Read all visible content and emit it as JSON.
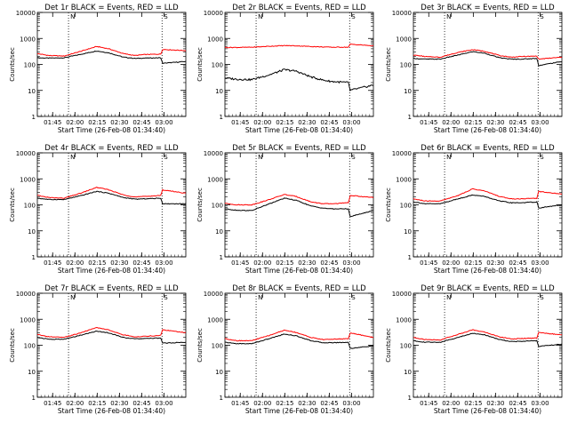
{
  "chart_data": {
    "type": "line",
    "y_scale": "log",
    "ylim": [
      1,
      10000
    ],
    "y_ticks": [
      "1",
      "10",
      "100",
      "1000",
      "10000"
    ],
    "ylabel": "Counts/sec",
    "x_ticks": [
      "01:45",
      "02:00",
      "02:15",
      "02:30",
      "02:45",
      "03:00"
    ],
    "xlabel": "Start Time (26-Feb-08 01:34:40)",
    "colors": {
      "events": "#000000",
      "lld": "#ff0000"
    },
    "marker_labels": [
      "N",
      "S",
      "N",
      "S",
      "N",
      "S",
      "N",
      "S",
      "N",
      "S",
      "N",
      "S",
      "N",
      "S",
      "N",
      "S",
      "N",
      "S"
    ],
    "panels": [
      {
        "title": "Det 1r BLACK = Events, RED = LLD",
        "series": [
          {
            "key": "events",
            "values": [
              180,
              175,
              180,
              250,
              330,
              280,
              190,
              170,
              175,
              180,
              110,
              130
            ]
          },
          {
            "key": "lld",
            "values": [
              260,
              220,
              210,
              330,
              490,
              400,
              260,
              220,
              240,
              250,
              380,
              340
            ]
          }
        ]
      },
      {
        "title": "Det 2r BLACK = Events, RED = LLD",
        "series": [
          {
            "key": "events",
            "values": [
              30,
              27,
              26,
              40,
              63,
              55,
              33,
              25,
              22,
              20,
              10,
              16
            ]
          },
          {
            "key": "lld",
            "values": [
              450,
              450,
              460,
              500,
              530,
              520,
              490,
              470,
              460,
              460,
              600,
              520
            ]
          }
        ]
      },
      {
        "title": "Det 3r BLACK = Events, RED = LLD",
        "series": [
          {
            "key": "events",
            "values": [
              170,
              160,
              160,
              230,
              310,
              270,
              180,
              160,
              160,
              170,
              90,
              130
            ]
          },
          {
            "key": "lld",
            "values": [
              230,
              200,
              190,
              290,
              370,
              320,
              220,
              190,
              200,
              210,
              160,
              190
            ]
          }
        ]
      },
      {
        "title": "Det 4r BLACK = Events, RED = LLD",
        "series": [
          {
            "key": "events",
            "values": [
              180,
              160,
              160,
              230,
              330,
              280,
              190,
              165,
              170,
              180,
              110,
              110
            ]
          },
          {
            "key": "lld",
            "values": [
              230,
              190,
              180,
              290,
              470,
              380,
              240,
              200,
              210,
              230,
              380,
              280
            ]
          }
        ]
      },
      {
        "title": "Det 5r BLACK = Events, RED = LLD",
        "series": [
          {
            "key": "events",
            "values": [
              70,
              62,
              60,
              110,
              180,
              150,
              90,
              75,
              70,
              70,
              35,
              60
            ]
          },
          {
            "key": "lld",
            "values": [
              115,
              100,
              100,
              160,
              250,
              210,
              130,
              110,
              110,
              120,
              230,
              190
            ]
          }
        ]
      },
      {
        "title": "Det 6r BLACK = Events, RED = LLD",
        "series": [
          {
            "key": "events",
            "values": [
              130,
              110,
              110,
              170,
              240,
              210,
              140,
              120,
              120,
              130,
              75,
              100
            ]
          },
          {
            "key": "lld",
            "values": [
              170,
              140,
              140,
              230,
              410,
              340,
              210,
              170,
              170,
              180,
              330,
              260
            ]
          }
        ]
      },
      {
        "title": "Det 7r BLACK = Events, RED = LLD",
        "series": [
          {
            "key": "events",
            "values": [
              200,
              170,
              170,
              250,
              350,
              300,
              200,
              175,
              180,
              190,
              120,
              130
            ]
          },
          {
            "key": "lld",
            "values": [
              260,
              210,
              200,
              310,
              480,
              390,
              250,
              210,
              220,
              240,
              400,
              300
            ]
          }
        ]
      },
      {
        "title": "Det 8r BLACK = Events, RED = LLD",
        "series": [
          {
            "key": "events",
            "values": [
              130,
              115,
              115,
              180,
              270,
              230,
              150,
              125,
              125,
              130,
              75,
              95
            ]
          },
          {
            "key": "lld",
            "values": [
              180,
              150,
              150,
              240,
              380,
              310,
              200,
              165,
              170,
              180,
              300,
              200
            ]
          }
        ]
      },
      {
        "title": "Det 9r BLACK = Events, RED = LLD",
        "series": [
          {
            "key": "events",
            "values": [
              150,
              130,
              130,
              200,
              290,
              250,
              165,
              140,
              140,
              150,
              90,
              110
            ]
          },
          {
            "key": "lld",
            "values": [
              200,
              165,
              160,
              260,
              390,
              320,
              210,
              175,
              180,
              190,
              310,
              250
            ]
          }
        ]
      }
    ]
  }
}
